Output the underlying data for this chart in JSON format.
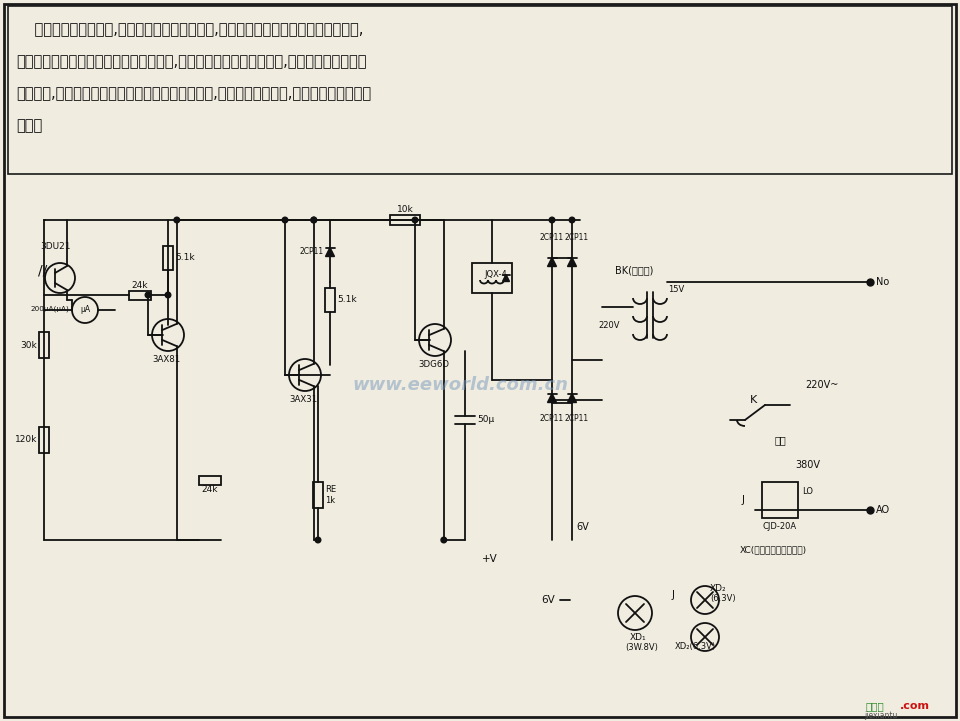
{
  "bg": "#f0ece0",
  "border": "#1a1a1a",
  "tc": "#111111",
  "wm_color": "#7799bb",
  "wm_text": "www.eeworld.com.cn",
  "desc": [
    "    制造纤维板的热磨机,将碎木块加热磨成纤维浆,木块从料仓落入热磨机喂料口通道中,",
    "通道口装入本装置。当木块进入喂料口时,木块堆积高度低于一定范围,本装置就自动控制料",
    "仓振动器,使料仓迅速落料。如果木块高于某一高度,即关闭料仓振荡器,达到落料自动调节的",
    "目的。"
  ],
  "footer_green": "接线图",
  "footer_red": ".com",
  "footer_sub": "jiexiantu"
}
